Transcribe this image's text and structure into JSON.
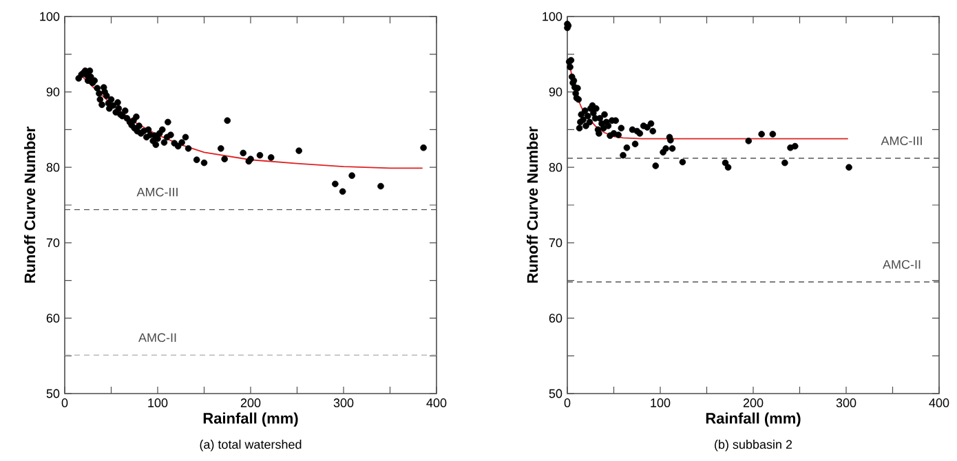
{
  "chart_data": [
    {
      "type": "scatter",
      "title": "(a)  total  watershed",
      "xlabel": "Rainfall (mm)",
      "ylabel": "Runoff Curve Number",
      "xlim": [
        0,
        400
      ],
      "ylim": [
        50,
        100
      ],
      "xticks": [
        0,
        {
          "value": 50,
          "label": null
        },
        100,
        {
          "value": 150,
          "label": null
        },
        200,
        {
          "value": 250,
          "label": null
        },
        300,
        {
          "value": 350,
          "label": null
        },
        400
      ],
      "yticks": [
        50,
        {
          "value": 55,
          "label": null
        },
        60,
        {
          "value": 65,
          "label": null
        },
        70,
        {
          "value": 75,
          "label": null
        },
        80,
        {
          "value": 85,
          "label": null
        },
        90,
        {
          "value": 95,
          "label": null
        },
        100
      ],
      "grid": false,
      "ref_lines": [
        {
          "axis": "y",
          "value": 74.4,
          "label": "AMC-III",
          "color": "#555555",
          "line_style": "dashed"
        },
        {
          "axis": "y",
          "value": 55.1,
          "label": "AMC-II",
          "color": "#aaaaaa",
          "line_style": "dashed"
        }
      ],
      "series": [
        {
          "type": "scatter",
          "color": "#000000",
          "marker": "circle",
          "x": [
            15,
            18,
            20,
            22,
            24,
            25,
            27,
            28,
            30,
            32,
            35,
            37,
            38,
            40,
            42,
            43,
            45,
            47,
            48,
            50,
            52,
            55,
            57,
            58,
            60,
            62,
            65,
            67,
            70,
            72,
            74,
            75,
            77,
            78,
            80,
            82,
            85,
            88,
            90,
            92,
            95,
            97,
            98,
            100,
            102,
            105,
            107,
            110,
            111,
            114,
            118,
            122,
            126,
            130,
            133,
            142,
            150,
            168,
            172,
            175,
            192,
            198,
            200,
            210,
            222,
            252,
            291,
            299,
            309,
            340,
            386
          ],
          "values": [
            91.8,
            92.3,
            92.5,
            92.8,
            92.2,
            91.5,
            92.8,
            92,
            91.2,
            91.5,
            90.5,
            89.8,
            89,
            88.3,
            90.6,
            90,
            89.5,
            88.5,
            87.8,
            89,
            88.2,
            87.3,
            88.6,
            87.8,
            87,
            86.8,
            87.5,
            86.5,
            86,
            85.6,
            86.2,
            85.2,
            86.7,
            84.8,
            85.5,
            84.5,
            84.8,
            84,
            85,
            84.3,
            83.5,
            84.2,
            83,
            83.8,
            84.5,
            85,
            83.3,
            84,
            86,
            84.3,
            83.2,
            82.8,
            83.3,
            84,
            82.5,
            81,
            80.6,
            82.5,
            81.1,
            86.2,
            81.9,
            80.8,
            81.1,
            81.6,
            81.3,
            82.2,
            77.8,
            76.8,
            78.9,
            77.5,
            82.6
          ]
        },
        {
          "type": "line",
          "color": "#e02020",
          "marker": "none",
          "line_style": "solid",
          "x": [
            15,
            30,
            50,
            75,
            100,
            125,
            150,
            200,
            250,
            300,
            350,
            385
          ],
          "values": [
            92.5,
            90.7,
            88.4,
            86,
            84.3,
            83,
            82,
            81,
            80.5,
            80.1,
            79.9,
            79.9
          ]
        }
      ]
    },
    {
      "type": "scatter",
      "title": "(b)  subbasin  2",
      "xlabel": "Rainfall (mm)",
      "ylabel": "Runoff Curve Number",
      "xlim": [
        0,
        400
      ],
      "ylim": [
        50,
        100
      ],
      "xticks": [
        0,
        {
          "value": 50,
          "label": null
        },
        100,
        {
          "value": 150,
          "label": null
        },
        200,
        {
          "value": 250,
          "label": null
        },
        300,
        {
          "value": 350,
          "label": null
        },
        400
      ],
      "yticks": [
        50,
        {
          "value": 55,
          "label": null
        },
        60,
        {
          "value": 65,
          "label": null
        },
        70,
        {
          "value": 75,
          "label": null
        },
        80,
        {
          "value": 85,
          "label": null
        },
        90,
        {
          "value": 95,
          "label": null
        },
        100
      ],
      "grid": false,
      "ref_lines": [
        {
          "axis": "y",
          "value": 81.2,
          "label": "AMC-III",
          "color": "#555555",
          "line_style": "dashed"
        },
        {
          "axis": "y",
          "value": 64.8,
          "label": "AMC-II",
          "color": "#555555",
          "line_style": "dashed"
        }
      ],
      "series": [
        {
          "type": "scatter",
          "color": "#000000",
          "marker": "circle",
          "x": [
            0,
            0,
            1,
            2,
            3,
            4,
            5,
            6,
            7,
            8,
            9,
            10,
            11,
            12,
            13,
            14,
            15,
            17,
            19,
            20,
            22,
            24,
            25,
            27,
            28,
            30,
            31,
            33,
            34,
            35,
            37,
            39,
            40,
            42,
            44,
            46,
            48,
            50,
            52,
            55,
            58,
            60,
            64,
            70,
            73,
            75,
            78,
            82,
            86,
            90,
            92,
            95,
            103,
            106,
            110,
            111,
            113,
            124,
            170,
            173,
            195,
            209,
            221,
            234,
            240,
            245,
            303
          ],
          "values": [
            99,
            98.5,
            98.8,
            94,
            93.3,
            94.2,
            92,
            91.2,
            91.5,
            90.6,
            89.8,
            89.2,
            90.5,
            89,
            85.2,
            86,
            87,
            86.3,
            87.5,
            85.5,
            86.8,
            86,
            87.8,
            88.2,
            87.2,
            86.5,
            87.8,
            85,
            84.5,
            86.5,
            85.8,
            85.2,
            87,
            86,
            85.5,
            84.2,
            86.2,
            84.5,
            86.2,
            84.3,
            85.2,
            81.6,
            82.6,
            85,
            83.1,
            84.8,
            84.5,
            85.5,
            85.3,
            85.8,
            84.8,
            80.2,
            82,
            82.5,
            84,
            83.6,
            82.5,
            80.7,
            80.6,
            80,
            83.5,
            84.4,
            84.4,
            80.6,
            82.6,
            82.8,
            80
          ]
        },
        {
          "type": "line",
          "color": "#e02020",
          "marker": "none",
          "line_style": "solid",
          "x": [
            2,
            5,
            10,
            15,
            20,
            30,
            40,
            50,
            60,
            80,
            100,
            200,
            302
          ],
          "values": [
            94,
            92,
            89.5,
            88,
            86.9,
            85.5,
            84.6,
            84.1,
            83.9,
            83.8,
            83.8,
            83.8,
            83.8
          ]
        }
      ]
    }
  ]
}
